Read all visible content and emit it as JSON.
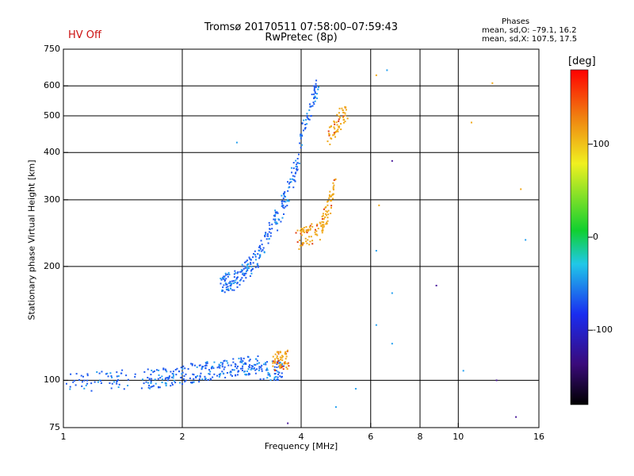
{
  "header": {
    "title_line1": "Tromsø 20170511 07:58:00–07:59:43",
    "title_line2": "RwPretec (8p)",
    "hv_status": "HV Off",
    "phases_title": "Phases",
    "phases_o": "mean, sd,O: –79.1, 16.2",
    "phases_x": "mean, sd,X: 107.5, 17.5"
  },
  "chart_data": {
    "type": "scatter",
    "xlabel": "Frequency [MHz]",
    "ylabel": "Stationary phase Virtual Height [km]",
    "xscale": "log",
    "yscale": "log",
    "xlim": [
      1,
      16
    ],
    "ylim": [
      75,
      750
    ],
    "x_ticks": [
      1,
      2,
      4,
      6,
      8,
      10,
      16
    ],
    "x_tick_labels": [
      "1",
      "2",
      "4",
      "6",
      "8",
      "10",
      "16"
    ],
    "y_ticks": [
      75,
      100,
      200,
      300,
      400,
      500,
      600,
      750
    ],
    "y_tick_labels": [
      "75",
      "100",
      "200",
      "300",
      "400",
      "500",
      "600",
      "750"
    ],
    "x_gridlines": [
      2,
      4,
      6,
      8,
      10
    ],
    "y_gridlines": [
      100,
      200,
      300,
      400,
      500,
      600
    ],
    "colorbar": {
      "label": "[deg]",
      "range": [
        -180,
        180
      ],
      "ticks": [
        100,
        0,
        -100
      ],
      "tick_labels": [
        "100",
        "0",
        "-100"
      ]
    },
    "colors": {
      "o_mode": "#1e5af0",
      "o_mode_light": "#23a0f0",
      "x_mode": "#f0a818",
      "x_mode_red": "#e03c14",
      "purple": "#4a1a9c",
      "green": "#22c830"
    },
    "series": [
      {
        "name": "O-mode E/low trace",
        "phase": -90,
        "segments": [
          [
            1.0,
            99,
            1.6,
            101
          ],
          [
            1.6,
            101,
            1.9,
            102
          ],
          [
            1.9,
            103,
            2.3,
            106
          ],
          [
            2.3,
            106,
            2.7,
            108
          ],
          [
            2.7,
            108,
            3.1,
            110
          ],
          [
            3.1,
            107,
            3.6,
            106
          ]
        ]
      },
      {
        "name": "O-mode F trace",
        "phase": -85,
        "segments": [
          [
            2.5,
            180,
            2.75,
            185
          ],
          [
            2.75,
            185,
            3.1,
            210
          ],
          [
            3.1,
            210,
            3.55,
            280
          ],
          [
            3.55,
            280,
            3.95,
            380
          ],
          [
            3.95,
            420,
            4.4,
            600
          ]
        ]
      },
      {
        "name": "X-mode trace",
        "phase": 105,
        "segments": [
          [
            3.4,
            112,
            3.7,
            114
          ],
          [
            3.9,
            235,
            4.5,
            250
          ],
          [
            4.5,
            250,
            4.9,
            330
          ],
          [
            4.7,
            440,
            5.2,
            520
          ]
        ]
      },
      {
        "name": "Isolated points",
        "phase": 0,
        "points": [
          [
            2.75,
            425
          ],
          [
            6.2,
            640
          ],
          [
            6.6,
            660
          ],
          [
            6.3,
            290
          ],
          [
            6.8,
            380
          ],
          [
            8.8,
            178
          ],
          [
            10.8,
            480
          ],
          [
            12.2,
            610
          ],
          [
            14.8,
            235
          ],
          [
            14.4,
            320
          ],
          [
            6.8,
            170
          ],
          [
            6.8,
            125
          ],
          [
            6.2,
            140
          ],
          [
            6.2,
            220
          ],
          [
            4.9,
            85
          ],
          [
            5.5,
            95
          ],
          [
            10.3,
            106
          ],
          [
            12.5,
            100
          ],
          [
            14.0,
            80
          ],
          [
            3.7,
            77
          ]
        ]
      }
    ]
  }
}
